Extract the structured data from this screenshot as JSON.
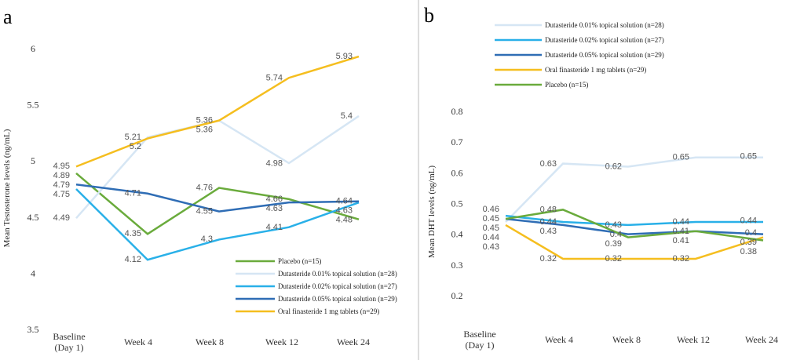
{
  "chart_data": [
    {
      "panel_label": "a",
      "type": "line",
      "title": "",
      "xlabel": "",
      "ylabel": "Mean Testosterone levels (ng/mL)",
      "categories": [
        [
          "Baseline",
          "(Day 1)"
        ],
        [
          "Week 4"
        ],
        [
          "Week 8"
        ],
        [
          "Week 12"
        ],
        [
          "Week 24"
        ]
      ],
      "y_ticks": [
        "3.5",
        "4",
        "4.5",
        "5",
        "5.5",
        "6"
      ],
      "ylim": [
        3.5,
        6
      ],
      "grid": false,
      "legend_position": "bottom-right",
      "series": [
        {
          "name": "Placebo (n=15)",
          "color": "#6aab3c",
          "values": [
            4.89,
            4.35,
            4.76,
            4.66,
            4.48
          ]
        },
        {
          "name": "Dutasteride 0.01% topical solution (n=28)",
          "color": "#d6e6f4",
          "values": [
            4.49,
            5.21,
            5.36,
            4.98,
            5.4
          ]
        },
        {
          "name": "Dutasteride 0.02% topical solution (n=27)",
          "color": "#29b0e8",
          "values": [
            4.75,
            4.12,
            4.3,
            4.41,
            4.63
          ]
        },
        {
          "name": "Dutasteride 0.05% topical solution (n=29)",
          "color": "#2f6db5",
          "values": [
            4.79,
            4.71,
            4.55,
            4.63,
            4.64
          ]
        },
        {
          "name": "Oral finasteride 1 mg tablets (n=29)",
          "color": "#f5be1f",
          "values": [
            4.95,
            5.2,
            5.36,
            5.74,
            5.93
          ]
        }
      ]
    },
    {
      "panel_label": "b",
      "type": "line",
      "title": "",
      "xlabel": "",
      "ylabel": "Mean DHT levels (ng/mL)",
      "categories": [
        [
          "Baseline",
          "(Day 1)"
        ],
        [
          "Week 4"
        ],
        [
          "Week 8"
        ],
        [
          "Week 12"
        ],
        [
          "Week 24"
        ]
      ],
      "y_ticks": [
        "0.2",
        "0.3",
        "0.4",
        "0.5",
        "0.6",
        "0.7",
        "0.8"
      ],
      "ylim": [
        0.2,
        0.8
      ],
      "grid": false,
      "legend_position": "top-right",
      "series": [
        {
          "name": "Dutasteride 0.01% topical solution (n=28)",
          "color": "#d6e6f4",
          "values": [
            0.44,
            0.63,
            0.62,
            0.65,
            0.65
          ]
        },
        {
          "name": "Dutasteride 0.02% topical solution (n=27)",
          "color": "#29b0e8",
          "values": [
            0.46,
            0.44,
            0.43,
            0.44,
            0.44
          ]
        },
        {
          "name": "Dutasteride 0.05% topical solution (n=29)",
          "color": "#2f6db5",
          "values": [
            0.45,
            0.43,
            0.4,
            0.41,
            0.4
          ]
        },
        {
          "name": "Oral finasteride 1 mg tablets (n=29)",
          "color": "#f5be1f",
          "values": [
            0.43,
            0.32,
            0.32,
            0.32,
            0.39
          ]
        },
        {
          "name": "Placebo (n=15)",
          "color": "#6aab3c",
          "values": [
            0.45,
            0.48,
            0.39,
            0.41,
            0.38
          ]
        }
      ]
    }
  ]
}
